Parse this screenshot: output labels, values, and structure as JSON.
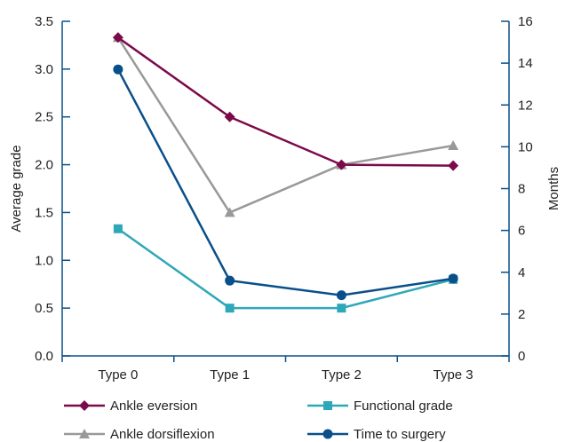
{
  "chart_data": {
    "type": "line",
    "categories": [
      "Type 0",
      "Type 1",
      "Type 2",
      "Type 3"
    ],
    "ylabel": "Average grade",
    "y2label": "Months",
    "ylim": [
      0,
      3.5
    ],
    "y_ticks": [
      "0.0",
      "0.5",
      "1.0",
      "1.5",
      "2.0",
      "2.5",
      "3.0",
      "3.5"
    ],
    "y2lim": [
      0,
      16
    ],
    "y2_ticks": [
      "0",
      "2",
      "4",
      "6",
      "8",
      "10",
      "12",
      "14",
      "16"
    ],
    "grid": false,
    "legend_position": "bottom",
    "series": [
      {
        "name": "Ankle eversion",
        "axis": "left",
        "color": "#7b0a4a",
        "marker": "diamond",
        "values": [
          3.33,
          2.5,
          2.0,
          1.99
        ]
      },
      {
        "name": "Functional grade",
        "axis": "left",
        "color": "#2ea8b8",
        "marker": "square",
        "values": [
          1.33,
          0.5,
          0.5,
          0.8
        ]
      },
      {
        "name": "Ankle dorsiflexion",
        "axis": "left",
        "color": "#999999",
        "marker": "triangle",
        "values": [
          3.33,
          1.5,
          2.0,
          2.2
        ]
      },
      {
        "name": "Time to surgery",
        "axis": "right",
        "color": "#0a4f8a",
        "marker": "circle",
        "values": [
          13.7,
          3.6,
          2.9,
          3.7
        ]
      }
    ],
    "axis_color": "#0a4f8a"
  }
}
